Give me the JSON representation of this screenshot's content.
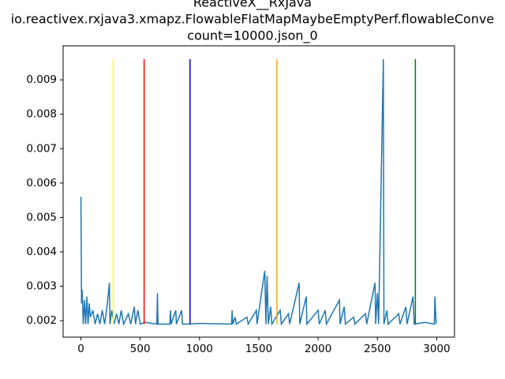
{
  "chart_data": {
    "type": "line",
    "title": [
      "ReactiveX__RxJava",
      "io.reactivex.rxjava3.xmapz.FlowableFlatMapMaybeEmptyPerf.flowableConve",
      "count=10000.json_0"
    ],
    "xlim": [
      -150,
      3150
    ],
    "ylim": [
      0.00152,
      0.00999
    ],
    "xticks": [
      0,
      500,
      1000,
      1500,
      2000,
      2500,
      3000
    ],
    "yticks": [
      0.002,
      0.003,
      0.004,
      0.005,
      0.006,
      0.007,
      0.008,
      0.009
    ],
    "series": [
      {
        "color": "#1f77b4",
        "x": [
          0,
          5,
          10,
          20,
          30,
          40,
          50,
          60,
          70,
          80,
          100,
          120,
          140,
          160,
          180,
          200,
          220,
          240,
          245,
          260,
          280,
          300,
          320,
          340,
          360,
          400,
          420,
          450,
          460,
          480,
          500,
          540,
          640,
          645,
          650,
          750,
          755,
          760,
          800,
          805,
          850,
          855,
          900,
          1000,
          1270,
          1275,
          1280,
          1300,
          1310,
          1400,
          1410,
          1480,
          1485,
          1550,
          1560,
          1570,
          1580,
          1600,
          1610,
          1680,
          1690,
          1750,
          1760,
          1840,
          1845,
          1900,
          1905,
          2000,
          2010,
          2060,
          2070,
          2180,
          2185,
          2220,
          2230,
          2300,
          2310,
          2400,
          2410,
          2480,
          2485,
          2500,
          2510,
          2550,
          2555,
          2580,
          2590,
          2680,
          2690,
          2740,
          2750,
          2800,
          2810,
          2900,
          2980,
          2985,
          2995
        ],
        "values": [
          0.0056,
          0.0025,
          0.0029,
          0.0019,
          0.0026,
          0.0019,
          0.0027,
          0.0019,
          0.0025,
          0.0021,
          0.0023,
          0.0019,
          0.0022,
          0.0019,
          0.0023,
          0.0019,
          0.0024,
          0.0031,
          0.0019,
          0.0023,
          0.0019,
          0.0022,
          0.0019,
          0.0023,
          0.0019,
          0.0022,
          0.0019,
          0.0024,
          0.0019,
          0.0023,
          0.0019,
          0.00195,
          0.0019,
          0.0028,
          0.0019,
          0.0019,
          0.0023,
          0.0019,
          0.0023,
          0.0019,
          0.0023,
          0.0019,
          0.0019,
          0.00192,
          0.0019,
          0.0023,
          0.0019,
          0.0021,
          0.0019,
          0.0021,
          0.0019,
          0.0023,
          0.0019,
          0.00345,
          0.0019,
          0.0033,
          0.0019,
          0.0024,
          0.0019,
          0.0023,
          0.0019,
          0.0022,
          0.0019,
          0.0031,
          0.0019,
          0.0027,
          0.0019,
          0.0023,
          0.0019,
          0.0023,
          0.0019,
          0.0026,
          0.0019,
          0.0024,
          0.0019,
          0.0021,
          0.0019,
          0.0022,
          0.0019,
          0.0031,
          0.0019,
          0.0028,
          0.0019,
          0.0096,
          0.0019,
          0.0023,
          0.0019,
          0.0022,
          0.0019,
          0.0024,
          0.0019,
          0.0027,
          0.0019,
          0.00195,
          0.0019,
          0.0027,
          0.0019
        ]
      }
    ],
    "vlines": [
      {
        "x": 273,
        "ymin": 0.0019,
        "ymax": 0.0096,
        "color": "yellow"
      },
      {
        "x": 533,
        "ymin": 0.0019,
        "ymax": 0.0096,
        "color": "red"
      },
      {
        "x": 920,
        "ymin": 0.0019,
        "ymax": 0.0096,
        "color": "blue"
      },
      {
        "x": 1653,
        "ymin": 0.0019,
        "ymax": 0.0096,
        "color": "orange"
      },
      {
        "x": 2820,
        "ymin": 0.0019,
        "ymax": 0.0096,
        "color": "green"
      }
    ]
  }
}
